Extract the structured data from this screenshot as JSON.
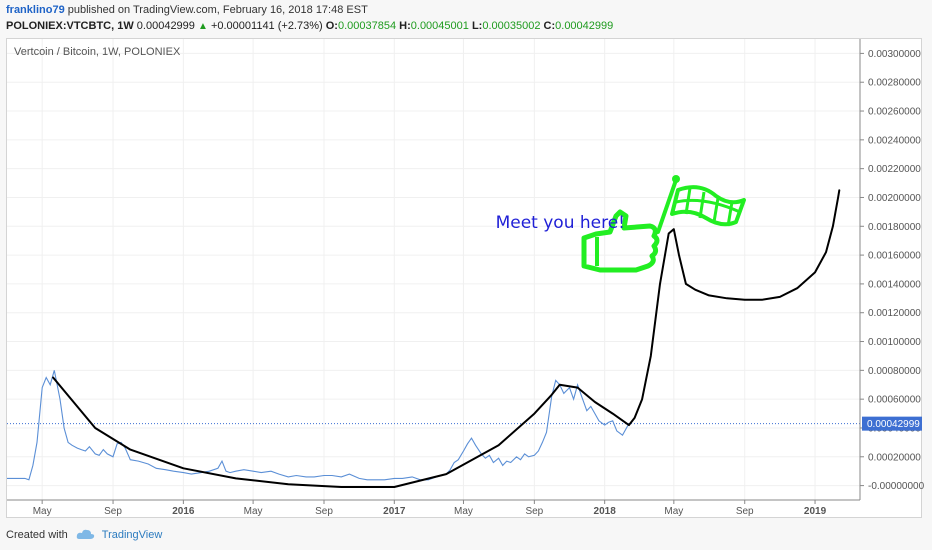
{
  "header": {
    "user": "franklino79",
    "published": "published on TradingView.com, February 16, 2018 17:48 EST",
    "symbol": "POLONIEX:VTCBTC, 1W",
    "last": "0.00042999",
    "change_arrow": "▲",
    "change": "+0.00001141 (+2.73%)",
    "o_label": "O:",
    "o": "0.00037854",
    "h_label": "H:",
    "h": "0.00045001",
    "l_label": "L:",
    "l": "0.00035002",
    "c_label": "C:",
    "c": "0.00042999"
  },
  "footer": {
    "created_with": "Created with",
    "brand": "TradingView"
  },
  "colors": {
    "price_line": "#5b8fd6",
    "projection": "#000000",
    "drawing": "#22ee22",
    "annotation_text": "#1f1fd6",
    "last_price_badge": "#3d6fd2"
  },
  "chart_data": {
    "type": "line",
    "title": "Vertcoin / Bitcoin, 1W, POLONIEX",
    "ylim": [
      -0.0001,
      0.0031
    ],
    "y_ticks": [
      "0.00300000",
      "0.00280000",
      "0.00260000",
      "0.00240000",
      "0.00220000",
      "0.00200000",
      "0.00180000",
      "0.00160000",
      "0.00140000",
      "0.00120000",
      "0.00100000",
      "0.00080000",
      "0.00060000",
      "0.00040000",
      "0.00020000",
      "-0.00000000"
    ],
    "y_tick_values": [
      0.003,
      0.0028,
      0.0026,
      0.0024,
      0.0022,
      0.002,
      0.0018,
      0.0016,
      0.0014,
      0.0012,
      0.001,
      0.0008,
      0.0006,
      0.0004,
      0.0002,
      0.0
    ],
    "x_range": [
      "2015-03-01",
      "2019-03-20"
    ],
    "x_ticks": [
      {
        "label": "May",
        "date": "2015-05-01"
      },
      {
        "label": "Sep",
        "date": "2015-09-01"
      },
      {
        "label": "2016",
        "date": "2016-01-01"
      },
      {
        "label": "May",
        "date": "2016-05-01"
      },
      {
        "label": "Sep",
        "date": "2016-09-01"
      },
      {
        "label": "2017",
        "date": "2017-01-01"
      },
      {
        "label": "May",
        "date": "2017-05-01"
      },
      {
        "label": "Sep",
        "date": "2017-09-01"
      },
      {
        "label": "2018",
        "date": "2018-01-01"
      },
      {
        "label": "May",
        "date": "2018-05-01"
      },
      {
        "label": "Sep",
        "date": "2018-09-01"
      },
      {
        "label": "2019",
        "date": "2019-01-01"
      }
    ],
    "last_price_label": "0.00042999",
    "last_price": 0.00042999,
    "series": [
      {
        "x": [
          "2015-03-01",
          "2015-03-15",
          "2015-04-01",
          "2015-04-08",
          "2015-04-15",
          "2015-04-22",
          "2015-05-01",
          "2015-05-08",
          "2015-05-15",
          "2015-05-22",
          "2015-06-01",
          "2015-06-08",
          "2015-06-15",
          "2015-06-22",
          "2015-07-01",
          "2015-07-08",
          "2015-07-15",
          "2015-07-22",
          "2015-08-01",
          "2015-08-08",
          "2015-08-15",
          "2015-08-22",
          "2015-09-01",
          "2015-09-08",
          "2015-09-15",
          "2015-09-22",
          "2015-10-01",
          "2015-10-15",
          "2015-11-01",
          "2015-11-15",
          "2015-12-01",
          "2015-12-15",
          "2016-01-01",
          "2016-01-15",
          "2016-02-01",
          "2016-02-15",
          "2016-03-01",
          "2016-03-08",
          "2016-03-15",
          "2016-03-22",
          "2016-04-01",
          "2016-04-15",
          "2016-05-01",
          "2016-05-15",
          "2016-06-01",
          "2016-06-15",
          "2016-07-01",
          "2016-07-15",
          "2016-08-01",
          "2016-08-15",
          "2016-09-01",
          "2016-09-15",
          "2016-10-01",
          "2016-10-15",
          "2016-11-01",
          "2016-11-15",
          "2016-12-01",
          "2016-12-15",
          "2017-01-01",
          "2017-01-15",
          "2017-02-01",
          "2017-02-15",
          "2017-03-01",
          "2017-03-15",
          "2017-04-01",
          "2017-04-08",
          "2017-04-15",
          "2017-04-22",
          "2017-05-01",
          "2017-05-08",
          "2017-05-15",
          "2017-05-22",
          "2017-06-01",
          "2017-06-08",
          "2017-06-15",
          "2017-06-22",
          "2017-07-01",
          "2017-07-08",
          "2017-07-15",
          "2017-07-22",
          "2017-08-01",
          "2017-08-08",
          "2017-08-15",
          "2017-08-22",
          "2017-09-01",
          "2017-09-08",
          "2017-09-15",
          "2017-09-22",
          "2017-10-01",
          "2017-10-08",
          "2017-10-15",
          "2017-10-22",
          "2017-11-01",
          "2017-11-08",
          "2017-11-15",
          "2017-11-22",
          "2017-12-01",
          "2017-12-08",
          "2017-12-15",
          "2017-12-22",
          "2018-01-01",
          "2018-01-08",
          "2018-01-15",
          "2018-01-22",
          "2018-02-01",
          "2018-02-12"
        ],
        "values": [
          5e-05,
          5e-05,
          5e-05,
          4e-05,
          0.00014,
          0.0003,
          0.00068,
          0.00075,
          0.0007,
          0.0008,
          0.0006,
          0.0004,
          0.0003,
          0.00028,
          0.00026,
          0.00025,
          0.00024,
          0.00027,
          0.00022,
          0.00021,
          0.00025,
          0.00022,
          0.0002,
          0.00029,
          0.0003,
          0.00026,
          0.00018,
          0.00017,
          0.00015,
          0.00012,
          0.00011,
          0.0001,
          9e-05,
          8e-05,
          9e-05,
          0.0001,
          0.00012,
          0.00017,
          0.0001,
          9e-05,
          0.0001,
          0.00011,
          0.0001,
          9e-05,
          0.0001,
          8e-05,
          6e-05,
          7e-05,
          6e-05,
          6e-05,
          7e-05,
          7e-05,
          6e-05,
          8e-05,
          5e-05,
          4e-05,
          4e-05,
          4e-05,
          5e-05,
          5e-05,
          6e-05,
          4e-05,
          4e-05,
          6e-05,
          8e-05,
          0.00011,
          0.00016,
          0.00018,
          0.00024,
          0.00029,
          0.00033,
          0.00028,
          0.00022,
          0.00019,
          0.00021,
          0.00016,
          0.00019,
          0.00014,
          0.00017,
          0.00016,
          0.0002,
          0.00018,
          0.00022,
          0.0002,
          0.00021,
          0.00024,
          0.0003,
          0.00037,
          0.00062,
          0.00073,
          0.0007,
          0.00064,
          0.00068,
          0.0006,
          0.0007,
          0.00062,
          0.00052,
          0.00055,
          0.0005,
          0.00045,
          0.00042,
          0.00044,
          0.00045,
          0.00038,
          0.00035,
          0.00043
        ]
      },
      {
        "x": [
          "2015-05-20",
          "2015-08-01",
          "2015-10-01",
          "2016-01-01",
          "2016-04-01",
          "2016-07-01",
          "2016-10-01",
          "2017-01-01",
          "2017-04-01",
          "2017-07-01",
          "2017-09-01",
          "2017-10-01",
          "2017-10-15",
          "2017-11-15",
          "2017-12-15",
          "2018-01-15",
          "2018-02-12",
          "2018-02-22",
          "2018-03-07",
          "2018-03-22",
          "2018-04-07",
          "2018-04-22",
          "2018-05-01",
          "2018-05-10",
          "2018-05-22",
          "2018-06-07",
          "2018-07-01",
          "2018-08-01",
          "2018-09-01",
          "2018-10-01",
          "2018-11-01",
          "2018-12-01",
          "2019-01-01",
          "2019-01-20",
          "2019-02-01",
          "2019-02-10",
          "2019-02-12"
        ],
        "values": [
          0.00075,
          0.0004,
          0.00025,
          0.00012,
          5e-05,
          1e-05,
          -1e-05,
          -1e-05,
          8e-05,
          0.00028,
          0.0005,
          0.00063,
          0.0007,
          0.00068,
          0.00058,
          0.0005,
          0.00042,
          0.00047,
          0.0006,
          0.0009,
          0.0014,
          0.00175,
          0.00178,
          0.0016,
          0.0014,
          0.00136,
          0.00132,
          0.0013,
          0.00129,
          0.00129,
          0.00131,
          0.00137,
          0.00148,
          0.00162,
          0.0018,
          0.002,
          0.00205
        ]
      }
    ],
    "annotations": [
      {
        "text": "Meet you here!",
        "date": "2017-11-15",
        "value": 0.00183
      }
    ]
  }
}
